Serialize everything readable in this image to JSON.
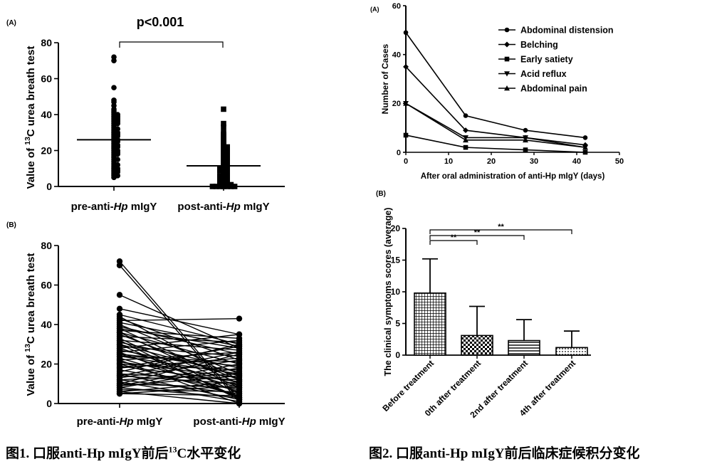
{
  "figure1": {
    "caption": {
      "prefix": "图1. 口服anti-Hp mIgY前后",
      "sup": "13",
      "suffix": "C水平变化"
    }
  },
  "figure2": {
    "caption": "图2. 口服anti-Hp mIgY前后临床症候积分变化"
  },
  "chart_data": [
    {
      "panel": "(A)",
      "type": "scatter",
      "title": "p<0.001",
      "ylabel": {
        "pre": "Value of ",
        "sup": "13",
        "post": "C urea breath test"
      },
      "categories": [
        {
          "pre": "pre-anti-",
          "italic": "Hp",
          "post": " mIgY"
        },
        {
          "pre": "post-anti-",
          "italic": "Hp",
          "post": " mIgY"
        }
      ],
      "ylim": [
        0,
        80
      ],
      "yticks": [
        0,
        20,
        40,
        60,
        80
      ],
      "series": [
        {
          "marker": "circle",
          "mean": 26,
          "values": [
            72,
            70,
            55,
            48,
            47,
            45,
            43,
            42,
            41,
            40,
            40,
            39,
            39,
            38,
            38,
            37,
            37,
            36,
            36,
            35,
            35,
            34,
            33,
            32,
            32,
            31,
            30,
            30,
            29,
            29,
            28,
            28,
            27,
            26,
            26,
            25,
            25,
            24,
            23,
            23,
            22,
            22,
            21,
            20,
            20,
            19,
            19,
            18,
            18,
            17,
            16,
            15,
            15,
            14,
            13,
            12,
            12,
            11,
            10,
            10,
            9,
            9,
            8,
            8,
            7,
            6,
            6,
            5
          ]
        },
        {
          "marker": "square",
          "mean": 11.5,
          "values": [
            43,
            35,
            33,
            30,
            29,
            28,
            27,
            26,
            25,
            24,
            23,
            22,
            22,
            21,
            20,
            20,
            19,
            18,
            18,
            17,
            17,
            16,
            15,
            15,
            14,
            14,
            13,
            13,
            12,
            12,
            11,
            11,
            10,
            10,
            10,
            9,
            9,
            9,
            8,
            8,
            7,
            7,
            6,
            6,
            6,
            5,
            5,
            5,
            4,
            4,
            4,
            3,
            3,
            3,
            2,
            2,
            2,
            1,
            1,
            1,
            1,
            0,
            0,
            0,
            0,
            0,
            0,
            0
          ]
        }
      ]
    },
    {
      "panel": "(B)",
      "type": "line",
      "ylabel": {
        "pre": "Value of ",
        "sup": "13",
        "post": "C urea breath test"
      },
      "categories": [
        {
          "pre": "pre-anti-",
          "italic": "Hp",
          "post": " mIgY"
        },
        {
          "pre": "post-anti-",
          "italic": "Hp",
          "post": " mIgY"
        }
      ],
      "ylim": [
        0,
        80
      ],
      "yticks": [
        0,
        20,
        40,
        60,
        80
      ],
      "pairs": [
        [
          72,
          2
        ],
        [
          70,
          1
        ],
        [
          55,
          28
        ],
        [
          48,
          35
        ],
        [
          45,
          30
        ],
        [
          43,
          22
        ],
        [
          42,
          43
        ],
        [
          41,
          29
        ],
        [
          40,
          15
        ],
        [
          39,
          25
        ],
        [
          38,
          10
        ],
        [
          37,
          33
        ],
        [
          36,
          20
        ],
        [
          35,
          12
        ],
        [
          34,
          31
        ],
        [
          33,
          5
        ],
        [
          32,
          27
        ],
        [
          31,
          18
        ],
        [
          30,
          14
        ],
        [
          30,
          3
        ],
        [
          29,
          24
        ],
        [
          28,
          9
        ],
        [
          27,
          16
        ],
        [
          26,
          32
        ],
        [
          25,
          8
        ],
        [
          25,
          19
        ],
        [
          24,
          21
        ],
        [
          23,
          6
        ],
        [
          22,
          26
        ],
        [
          21,
          13
        ],
        [
          20,
          4
        ],
        [
          20,
          17
        ],
        [
          19,
          11
        ],
        [
          18,
          23
        ],
        [
          17,
          7
        ],
        [
          16,
          30
        ],
        [
          15,
          2
        ],
        [
          15,
          12
        ],
        [
          14,
          10
        ],
        [
          13,
          22
        ],
        [
          12,
          5
        ],
        [
          12,
          15
        ],
        [
          11,
          1
        ],
        [
          10,
          8
        ],
        [
          10,
          25
        ],
        [
          9,
          14
        ],
        [
          8,
          3
        ],
        [
          8,
          18
        ],
        [
          7,
          6
        ],
        [
          6,
          11
        ],
        [
          6,
          0
        ],
        [
          5,
          4
        ],
        [
          5,
          9
        ],
        [
          44,
          12
        ],
        [
          38,
          28
        ],
        [
          32,
          2
        ],
        [
          28,
          35
        ],
        [
          24,
          15
        ],
        [
          18,
          29
        ],
        [
          14,
          26
        ],
        [
          9,
          20
        ],
        [
          36,
          8
        ],
        [
          26,
          3
        ],
        [
          22,
          0
        ]
      ]
    },
    {
      "panel": "(A)",
      "type": "line",
      "xlabel": "After oral administration of anti-Hp mIgY (days)",
      "ylabel": "Number of Cases",
      "xlim": [
        0,
        50
      ],
      "ylim": [
        0,
        60
      ],
      "xticks": [
        0,
        10,
        20,
        30,
        40,
        50
      ],
      "xtick_labels": [
        "0",
        "10",
        "20",
        "30",
        "40",
        "50"
      ],
      "yticks": [
        0,
        20,
        40,
        60
      ],
      "x": [
        0,
        14,
        28,
        42
      ],
      "series": [
        {
          "name": "Abdominal distension",
          "marker": "circle",
          "values": [
            49,
            15,
            9,
            6
          ]
        },
        {
          "name": "Belching",
          "marker": "diamond",
          "values": [
            35,
            9,
            6,
            3
          ]
        },
        {
          "name": "Early satiety",
          "marker": "square",
          "values": [
            7,
            2,
            1,
            0
          ]
        },
        {
          "name": "Acid reflux",
          "marker": "triangle-down",
          "values": [
            20,
            6,
            6,
            2
          ]
        },
        {
          "name": "Abdominal pain",
          "marker": "triangle-up",
          "values": [
            20,
            5,
            5,
            2
          ]
        }
      ],
      "legend": "top-right"
    },
    {
      "panel": "(B)",
      "type": "bar",
      "ylabel": "The clinical symptoms scores (average)",
      "ylim": [
        0,
        20
      ],
      "yticks": [
        0,
        5,
        10,
        15,
        20
      ],
      "categories": [
        "Before treatment",
        "0th after treatment",
        "2nd after treatment",
        "4th after treatment"
      ],
      "values": [
        9.8,
        3.1,
        2.3,
        1.2
      ],
      "errors": [
        5.4,
        4.6,
        3.3,
        2.6
      ],
      "patterns": [
        "grid",
        "check",
        "hstripe",
        "dots"
      ],
      "significance": [
        {
          "from": 0,
          "to": 1,
          "label": "**"
        },
        {
          "from": 0,
          "to": 2,
          "label": "**"
        },
        {
          "from": 0,
          "to": 3,
          "label": "**"
        }
      ]
    }
  ]
}
